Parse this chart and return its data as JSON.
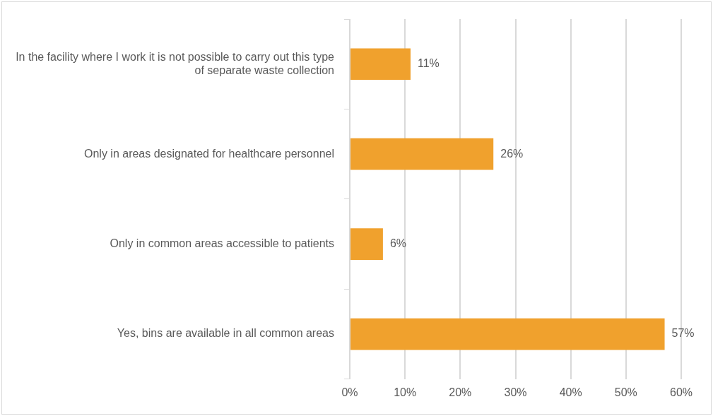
{
  "chart_data": {
    "type": "bar",
    "orientation": "horizontal",
    "categories": [
      "In the facility where I work it is not possible to carry out this type of separate waste collection",
      "Only in areas designated for healthcare personnel",
      "Only in common areas accessible to patients",
      "Yes, bins are available in all common areas"
    ],
    "values": [
      11,
      26,
      6,
      57
    ],
    "color": "#f0a12d",
    "value_labels": [
      "11%",
      "26%",
      "6%",
      "57%"
    ],
    "xlim": [
      0,
      60
    ],
    "xticks": [
      {
        "value": 0,
        "label": "0%"
      },
      {
        "value": 10,
        "label": "10%"
      },
      {
        "value": 20,
        "label": "20%"
      },
      {
        "value": 30,
        "label": "30%"
      },
      {
        "value": 40,
        "label": "40%"
      },
      {
        "value": 50,
        "label": "50%"
      },
      {
        "value": 60,
        "label": "60%"
      }
    ],
    "grid": "x",
    "legend": false
  }
}
